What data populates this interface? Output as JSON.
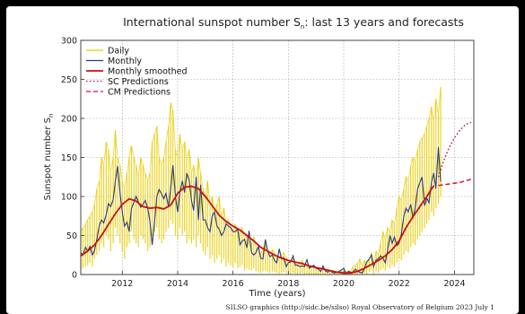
{
  "chart_data": {
    "type": "line",
    "title": "International sunspot number S",
    "title_subscript": "n",
    "title_suffix": ": last 13 years and forecasts",
    "xlabel": "Time (years)",
    "ylabel": "Sunspot number S",
    "ylabel_subscript": "n",
    "xlim": [
      2010.5,
      2024.7
    ],
    "ylim": [
      0,
      300
    ],
    "xticks": [
      2012,
      2014,
      2016,
      2018,
      2020,
      2022,
      2024
    ],
    "yticks": [
      0,
      50,
      100,
      150,
      200,
      250,
      300
    ],
    "grid": true,
    "legend_position": "top-left",
    "credit": "SILSO graphics (http://sidc.be/silso)  Royal Observatory of Belgium  2023 July 1",
    "series": [
      {
        "name": "Daily",
        "color": "#e8cc00",
        "style": "solid",
        "x": [
          2010.5,
          2010.58,
          2010.67,
          2010.75,
          2010.83,
          2010.92,
          2011.0,
          2011.08,
          2011.17,
          2011.25,
          2011.33,
          2011.42,
          2011.5,
          2011.58,
          2011.67,
          2011.75,
          2011.83,
          2011.92,
          2012.0,
          2012.08,
          2012.17,
          2012.25,
          2012.33,
          2012.42,
          2012.5,
          2012.58,
          2012.67,
          2012.75,
          2012.83,
          2012.92,
          2013.0,
          2013.08,
          2013.17,
          2013.25,
          2013.33,
          2013.42,
          2013.5,
          2013.58,
          2013.67,
          2013.75,
          2013.83,
          2013.92,
          2014.0,
          2014.08,
          2014.17,
          2014.25,
          2014.33,
          2014.42,
          2014.5,
          2014.58,
          2014.67,
          2014.75,
          2014.83,
          2014.92,
          2015.0,
          2015.08,
          2015.17,
          2015.25,
          2015.33,
          2015.42,
          2015.5,
          2015.58,
          2015.67,
          2015.75,
          2015.83,
          2015.92,
          2016.0,
          2016.08,
          2016.17,
          2016.25,
          2016.33,
          2016.42,
          2016.5,
          2016.58,
          2016.67,
          2016.75,
          2016.83,
          2016.92,
          2017.0,
          2017.08,
          2017.17,
          2017.25,
          2017.33,
          2017.42,
          2017.5,
          2017.58,
          2017.67,
          2017.75,
          2017.83,
          2017.92,
          2018.0,
          2018.08,
          2018.17,
          2018.25,
          2018.33,
          2018.42,
          2018.5,
          2018.58,
          2018.67,
          2018.75,
          2018.83,
          2018.92,
          2019.0,
          2019.08,
          2019.17,
          2019.25,
          2019.33,
          2019.42,
          2019.5,
          2019.58,
          2019.67,
          2019.75,
          2019.83,
          2019.92,
          2020.0,
          2020.08,
          2020.17,
          2020.25,
          2020.33,
          2020.42,
          2020.5,
          2020.58,
          2020.67,
          2020.75,
          2020.83,
          2020.92,
          2021.0,
          2021.08,
          2021.17,
          2021.25,
          2021.33,
          2021.42,
          2021.5,
          2021.58,
          2021.67,
          2021.75,
          2021.83,
          2021.92,
          2022.0,
          2022.08,
          2022.17,
          2022.25,
          2022.33,
          2022.42,
          2022.5,
          2022.58,
          2022.67,
          2022.75,
          2022.83,
          2022.92,
          2023.0,
          2023.08,
          2023.17,
          2023.25,
          2023.33,
          2023.42,
          2023.5
        ],
        "low": [
          5,
          8,
          10,
          12,
          15,
          10,
          20,
          25,
          30,
          40,
          35,
          50,
          45,
          30,
          40,
          60,
          50,
          40,
          30,
          20,
          35,
          40,
          55,
          45,
          40,
          35,
          50,
          45,
          40,
          30,
          35,
          50,
          55,
          60,
          45,
          40,
          45,
          55,
          60,
          70,
          65,
          50,
          45,
          60,
          50,
          55,
          40,
          45,
          40,
          45,
          35,
          50,
          40,
          30,
          25,
          35,
          20,
          25,
          15,
          20,
          25,
          15,
          20,
          10,
          15,
          12,
          10,
          15,
          8,
          10,
          12,
          5,
          8,
          6,
          5,
          8,
          4,
          3,
          2,
          4,
          5,
          3,
          2,
          4,
          3,
          2,
          1,
          2,
          3,
          2,
          1,
          0,
          2,
          1,
          0,
          1,
          2,
          0,
          1,
          0,
          0,
          1,
          0,
          0,
          0,
          1,
          0,
          0,
          0,
          0,
          0,
          0,
          0,
          0,
          0,
          0,
          0,
          0,
          0,
          0,
          0,
          1,
          0,
          2,
          0,
          3,
          5,
          0,
          4,
          2,
          6,
          8,
          5,
          10,
          8,
          12,
          10,
          15,
          20,
          18,
          25,
          30,
          28,
          35,
          40,
          38,
          45,
          50,
          55,
          60,
          65,
          70,
          80,
          75,
          85,
          90,
          100
        ],
        "high": [
          55,
          60,
          65,
          70,
          75,
          80,
          90,
          110,
          120,
          150,
          140,
          170,
          160,
          130,
          150,
          185,
          150,
          140,
          120,
          110,
          130,
          150,
          165,
          150,
          140,
          125,
          150,
          140,
          130,
          120,
          130,
          170,
          180,
          190,
          150,
          140,
          150,
          170,
          190,
          220,
          210,
          160,
          150,
          180,
          160,
          170,
          150,
          160,
          130,
          140,
          120,
          150,
          130,
          110,
          100,
          120,
          90,
          100,
          80,
          90,
          100,
          75,
          85,
          65,
          70,
          60,
          55,
          65,
          50,
          55,
          60,
          45,
          50,
          42,
          40,
          48,
          35,
          30,
          25,
          35,
          40,
          30,
          25,
          32,
          28,
          22,
          20,
          25,
          28,
          22,
          18,
          15,
          20,
          15,
          12,
          15,
          18,
          10,
          12,
          10,
          8,
          12,
          8,
          6,
          5,
          10,
          6,
          4,
          3,
          5,
          4,
          3,
          2,
          6,
          8,
          3,
          5,
          4,
          10,
          12,
          15,
          20,
          10,
          18,
          12,
          20,
          28,
          15,
          30,
          25,
          40,
          55,
          45,
          60,
          55,
          70,
          65,
          85,
          100,
          95,
          110,
          125,
          120,
          140,
          150,
          145,
          160,
          170,
          175,
          180,
          190,
          200,
          215,
          195,
          225,
          205,
          240
        ]
      },
      {
        "name": "Monthly",
        "color": "#2b3a7a",
        "style": "solid",
        "x": [
          2010.5,
          2010.58,
          2010.67,
          2010.75,
          2010.83,
          2010.92,
          2011.0,
          2011.08,
          2011.17,
          2011.25,
          2011.33,
          2011.42,
          2011.5,
          2011.58,
          2011.67,
          2011.75,
          2011.83,
          2011.92,
          2012.0,
          2012.08,
          2012.17,
          2012.25,
          2012.33,
          2012.42,
          2012.5,
          2012.58,
          2012.67,
          2012.75,
          2012.83,
          2012.92,
          2013.0,
          2013.08,
          2013.17,
          2013.25,
          2013.33,
          2013.42,
          2013.5,
          2013.58,
          2013.67,
          2013.75,
          2013.83,
          2013.92,
          2014.0,
          2014.08,
          2014.17,
          2014.25,
          2014.33,
          2014.42,
          2014.5,
          2014.58,
          2014.67,
          2014.75,
          2014.83,
          2014.92,
          2015.0,
          2015.08,
          2015.17,
          2015.25,
          2015.33,
          2015.42,
          2015.5,
          2015.58,
          2015.67,
          2015.75,
          2015.83,
          2015.92,
          2016.0,
          2016.08,
          2016.17,
          2016.25,
          2016.33,
          2016.42,
          2016.5,
          2016.58,
          2016.67,
          2016.75,
          2016.83,
          2016.92,
          2017.0,
          2017.08,
          2017.17,
          2017.25,
          2017.33,
          2017.42,
          2017.5,
          2017.58,
          2017.67,
          2017.75,
          2017.83,
          2017.92,
          2018.0,
          2018.08,
          2018.17,
          2018.25,
          2018.33,
          2018.42,
          2018.5,
          2018.58,
          2018.67,
          2018.75,
          2018.83,
          2018.92,
          2019.0,
          2019.08,
          2019.17,
          2019.25,
          2019.33,
          2019.42,
          2019.5,
          2019.58,
          2019.67,
          2019.75,
          2019.83,
          2019.92,
          2020.0,
          2020.08,
          2020.17,
          2020.25,
          2020.33,
          2020.42,
          2020.5,
          2020.58,
          2020.67,
          2020.75,
          2020.83,
          2020.92,
          2021.0,
          2021.08,
          2021.17,
          2021.25,
          2021.33,
          2021.42,
          2021.5,
          2021.58,
          2021.67,
          2021.75,
          2021.83,
          2021.92,
          2022.0,
          2022.08,
          2022.17,
          2022.25,
          2022.33,
          2022.42,
          2022.5,
          2022.58,
          2022.67,
          2022.75,
          2022.83,
          2022.92,
          2023.0,
          2023.08,
          2023.17,
          2023.25,
          2023.33,
          2023.42,
          2023.5
        ],
        "values": [
          28,
          25,
          35,
          30,
          36,
          25,
          31,
          45,
          63,
          70,
          66,
          77,
          91,
          87,
          96,
          120,
          139,
          104,
          80,
          62,
          67,
          55,
          84,
          93,
          100,
          93,
          86,
          90,
          95,
          85,
          68,
          38,
          70,
          100,
          109,
          103,
          97,
          104,
          86,
          110,
          140,
          100,
          80,
          105,
          120,
          105,
          130,
          120,
          95,
          82,
          125,
          70,
          115,
          70,
          70,
          60,
          55,
          75,
          80,
          62,
          58,
          50,
          55,
          65,
          62,
          60,
          55,
          55,
          58,
          38,
          43,
          45,
          34,
          56,
          28,
          25,
          28,
          36,
          21,
          20,
          45,
          30,
          23,
          25,
          18,
          15,
          33,
          20,
          22,
          10,
          15,
          16,
          24,
          12,
          12,
          10,
          11,
          10,
          19,
          8,
          10,
          12,
          8,
          7,
          4,
          11,
          5,
          3,
          5,
          3,
          2,
          3,
          4,
          6,
          8,
          1,
          4,
          3,
          3,
          7,
          4,
          3,
          2,
          8,
          16,
          20,
          25,
          10,
          19,
          20,
          24,
          21,
          15,
          30,
          50,
          40,
          48,
          37,
          40,
          52,
          75,
          85,
          80,
          90,
          72,
          85,
          110,
          118,
          125,
          88,
          98,
          92,
          118,
          130,
          110,
          163,
          119
        ]
      },
      {
        "name": "Monthly smoothed",
        "color": "#cc1010",
        "style": "solid",
        "x": [
          2010.5,
          2010.75,
          2011.0,
          2011.25,
          2011.5,
          2011.75,
          2012.0,
          2012.25,
          2012.5,
          2012.75,
          2013.0,
          2013.25,
          2013.5,
          2013.75,
          2014.0,
          2014.25,
          2014.5,
          2014.75,
          2015.0,
          2015.25,
          2015.5,
          2015.75,
          2016.0,
          2016.25,
          2016.5,
          2016.75,
          2017.0,
          2017.25,
          2017.5,
          2017.75,
          2018.0,
          2018.25,
          2018.5,
          2018.75,
          2019.0,
          2019.25,
          2019.5,
          2019.75,
          2020.0,
          2020.25,
          2020.5,
          2020.75,
          2021.0,
          2021.25,
          2021.5,
          2021.75,
          2022.0,
          2022.25,
          2022.5,
          2022.75,
          2023.0,
          2023.25
        ],
        "values": [
          24,
          30,
          38,
          50,
          64,
          78,
          90,
          97,
          94,
          87,
          85,
          86,
          84,
          89,
          104,
          112,
          113,
          110,
          100,
          88,
          76,
          68,
          62,
          57,
          50,
          43,
          35,
          30,
          25,
          21,
          18,
          16,
          14,
          11,
          9,
          7,
          5,
          3,
          2,
          2,
          4,
          8,
          13,
          18,
          24,
          32,
          43,
          60,
          74,
          87,
          100,
          114
        ]
      },
      {
        "name": "SC Predictions",
        "color": "#b01060",
        "style": "dotted",
        "x": [
          2023.42,
          2023.6,
          2023.8,
          2024.0,
          2024.2,
          2024.4,
          2024.6
        ],
        "values": [
          125,
          145,
          162,
          175,
          185,
          192,
          195
        ]
      },
      {
        "name": "CM Predictions",
        "color": "#dd1030",
        "style": "dashed",
        "x": [
          2023.42,
          2023.6,
          2023.8,
          2024.0,
          2024.2,
          2024.4,
          2024.6
        ],
        "values": [
          114,
          115,
          116,
          117,
          118,
          120,
          122
        ]
      }
    ]
  }
}
